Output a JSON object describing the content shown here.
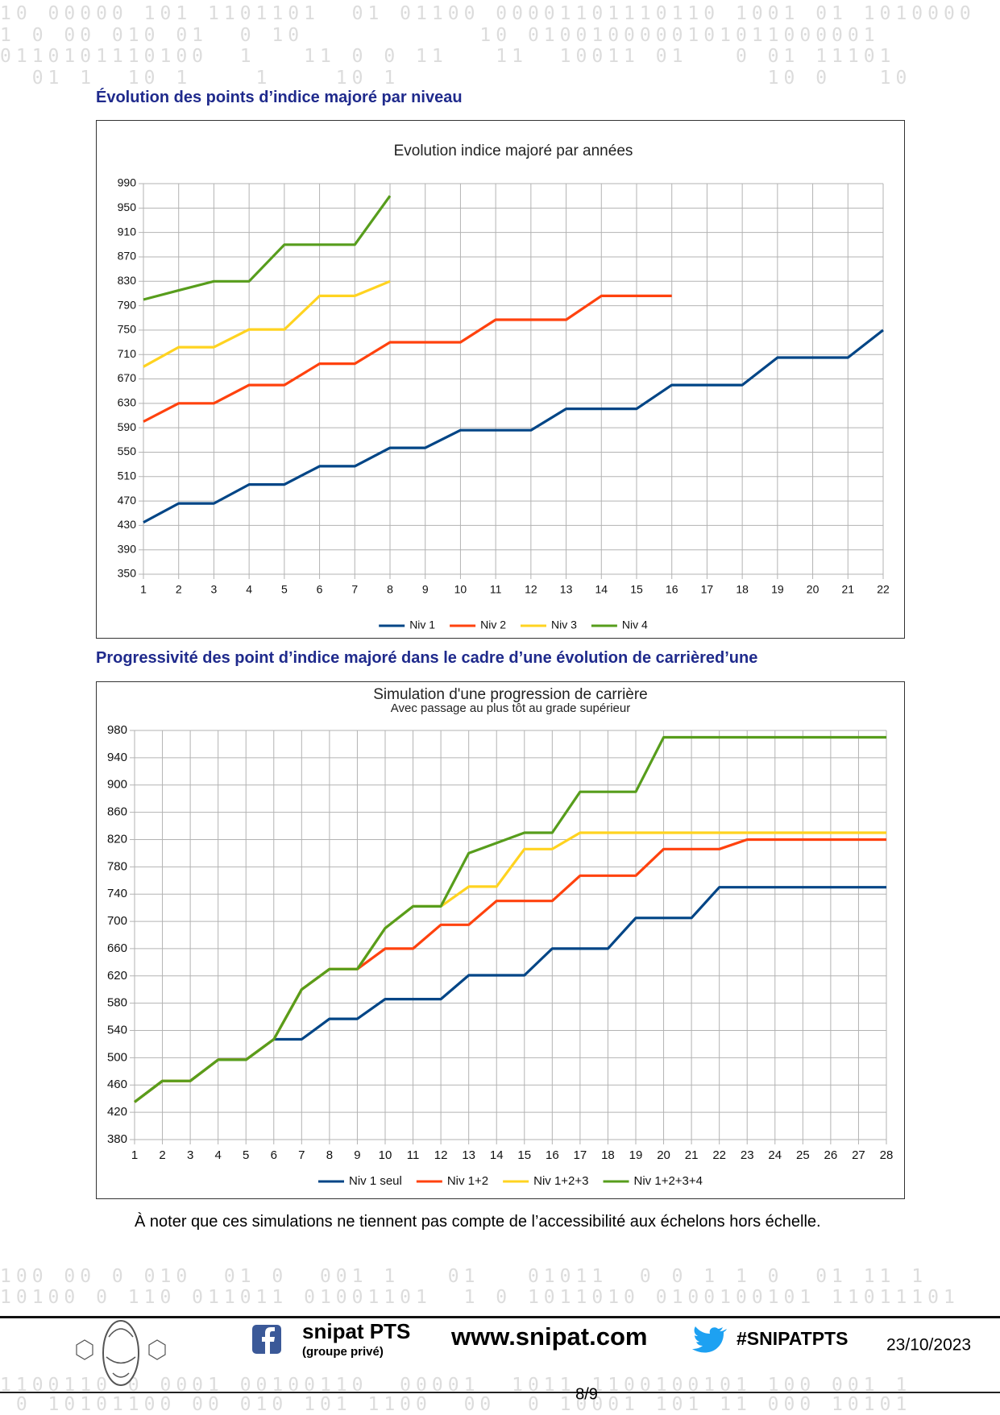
{
  "headings": [
    "Évolution des points d’indice majoré par niveau",
    "Progressivité des point d’indice majoré dans le cadre d’une évolution de carrièred’une"
  ],
  "chart_data": [
    {
      "type": "line",
      "title": "Evolution indice majoré par années",
      "x": [
        1,
        2,
        3,
        4,
        5,
        6,
        7,
        8,
        9,
        10,
        11,
        12,
        13,
        14,
        15,
        16,
        17,
        18,
        19,
        20,
        21,
        22
      ],
      "xlim": [
        1,
        22
      ],
      "xticks": [
        1,
        2,
        3,
        4,
        5,
        6,
        7,
        8,
        9,
        10,
        11,
        12,
        13,
        14,
        15,
        16,
        17,
        18,
        19,
        20,
        21,
        22
      ],
      "ylim": [
        350,
        990
      ],
      "yticks": [
        350,
        390,
        430,
        470,
        510,
        550,
        590,
        630,
        670,
        710,
        750,
        790,
        830,
        870,
        910,
        950,
        990
      ],
      "grid": true,
      "legend": "bottom",
      "series": [
        {
          "name": "Niv 1",
          "color": "#004586",
          "values": [
            435,
            466,
            466,
            497,
            497,
            527,
            527,
            557,
            557,
            586,
            586,
            586,
            621,
            621,
            621,
            660,
            660,
            660,
            705,
            705,
            705,
            750
          ]
        },
        {
          "name": "Niv 2",
          "color": "#ff420e",
          "values": [
            600,
            630,
            630,
            660,
            660,
            695,
            695,
            730,
            730,
            730,
            767,
            767,
            767,
            806,
            806,
            806,
            null,
            null,
            null,
            null,
            null,
            null
          ]
        },
        {
          "name": "Niv 3",
          "color": "#ffd320",
          "values": [
            690,
            722,
            722,
            751,
            751,
            806,
            806,
            830,
            null,
            null,
            null,
            null,
            null,
            null,
            null,
            null,
            null,
            null,
            null,
            null,
            null,
            null
          ]
        },
        {
          "name": "Niv 4",
          "color": "#579d1c",
          "values": [
            800,
            815,
            830,
            830,
            890,
            890,
            890,
            970,
            null,
            null,
            null,
            null,
            null,
            null,
            null,
            null,
            null,
            null,
            null,
            null,
            null,
            null
          ]
        }
      ]
    },
    {
      "type": "line",
      "title": "Simulation d'une progression de carrière",
      "subtitle": "Avec passage au plus tôt au grade supérieur",
      "x": [
        1,
        2,
        3,
        4,
        5,
        6,
        7,
        8,
        9,
        10,
        11,
        12,
        13,
        14,
        15,
        16,
        17,
        18,
        19,
        20,
        21,
        22,
        23,
        24,
        25,
        26,
        27,
        28
      ],
      "xlim": [
        1,
        28
      ],
      "xticks": [
        1,
        2,
        3,
        4,
        5,
        6,
        7,
        8,
        9,
        10,
        11,
        12,
        13,
        14,
        15,
        16,
        17,
        18,
        19,
        20,
        21,
        22,
        23,
        24,
        25,
        26,
        27,
        28
      ],
      "ylim": [
        380,
        980
      ],
      "yticks": [
        380,
        420,
        460,
        500,
        540,
        580,
        620,
        660,
        700,
        740,
        780,
        820,
        860,
        900,
        940,
        980
      ],
      "grid": true,
      "legend": "bottom",
      "series": [
        {
          "name": "Niv 1 seul",
          "color": "#004586",
          "values": [
            435,
            466,
            466,
            497,
            497,
            527,
            527,
            557,
            557,
            586,
            586,
            586,
            621,
            621,
            621,
            660,
            660,
            660,
            705,
            705,
            705,
            750,
            750,
            750,
            750,
            750,
            750,
            750
          ]
        },
        {
          "name": "Niv 1+2",
          "color": "#ff420e",
          "values": [
            435,
            466,
            466,
            497,
            497,
            527,
            600,
            630,
            630,
            660,
            660,
            695,
            695,
            730,
            730,
            730,
            767,
            767,
            767,
            806,
            806,
            806,
            820,
            820,
            820,
            820,
            820,
            820
          ]
        },
        {
          "name": "Niv 1+2+3",
          "color": "#ffd320",
          "values": [
            435,
            466,
            466,
            497,
            497,
            527,
            600,
            630,
            630,
            690,
            722,
            722,
            751,
            751,
            806,
            806,
            830,
            830,
            830,
            830,
            830,
            830,
            830,
            830,
            830,
            830,
            830,
            830
          ]
        },
        {
          "name": "Niv 1+2+3+4",
          "color": "#579d1c",
          "values": [
            435,
            466,
            466,
            497,
            497,
            527,
            600,
            630,
            630,
            690,
            722,
            722,
            800,
            815,
            830,
            830,
            890,
            890,
            890,
            970,
            970,
            970,
            970,
            970,
            970,
            970,
            970,
            970
          ]
        }
      ]
    }
  ],
  "note": "À noter que ces simulations ne tiennent pas compte de l’accessibilité aux échelons hors échelle.",
  "footer": {
    "group_name": "snipat PTS",
    "group_note": "(groupe privé)",
    "website": "www.snipat.com",
    "hashtag": "#SNIPATPTS",
    "date": "23/10/2023",
    "page": "8/9"
  },
  "background_binary": [
    "10 00000 101 1101101  01 01100 00001101110110 1001 01 1010000",
    "1 0 00 010 01  0 10           10 0100100000101011000001",
    "0110101110100  1   11 0 0 11   11  10011 01   0 01 11101",
    "  01 1  10 1    1    10 1                       10 0   10",
    "100 00 0 010  01 0  001 1   01   01011  0 0 1 1 0  01 11 1",
    "10100 0 110 011011 01001101  1 0 1011010 0100100101 11011101",
    "1100110 0 0001 00100110  00001  1011 1100100101 100 001 1",
    " 0 10101100 00 010 101 1100  00  0 10001 101 11 000 10101"
  ]
}
